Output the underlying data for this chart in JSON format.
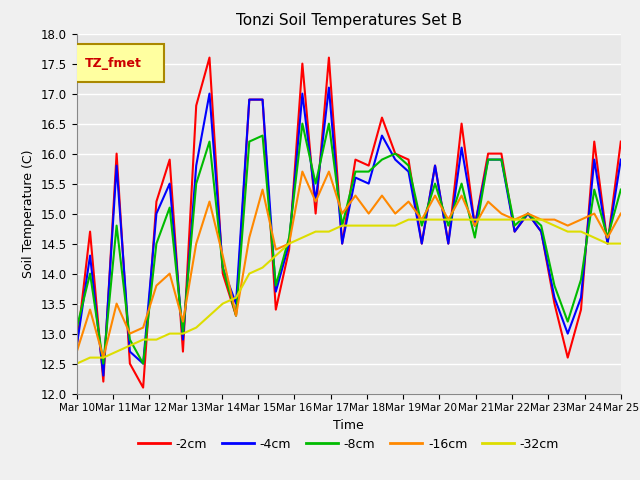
{
  "title": "Tonzi Soil Temperatures Set B",
  "xlabel": "Time",
  "ylabel": "Soil Temperature (C)",
  "ylim": [
    12.0,
    18.0
  ],
  "yticks": [
    12.0,
    12.5,
    13.0,
    13.5,
    14.0,
    14.5,
    15.0,
    15.5,
    16.0,
    16.5,
    17.0,
    17.5,
    18.0
  ],
  "x_labels": [
    "Mar 10",
    "Mar 11",
    "Mar 12",
    "Mar 13",
    "Mar 14",
    "Mar 15",
    "Mar 16",
    "Mar 17",
    "Mar 18",
    "Mar 19",
    "Mar 20",
    "Mar 21",
    "Mar 22",
    "Mar 23",
    "Mar 24",
    "Mar 25"
  ],
  "plot_bg": "#e8e8e8",
  "fig_bg": "#f0f0f0",
  "grid_color": "#ffffff",
  "series_colors": {
    "-2cm": "#ff0000",
    "-4cm": "#0000ff",
    "-8cm": "#00bb00",
    "-16cm": "#ff8800",
    "-32cm": "#dddd00"
  },
  "series_order": [
    "-2cm",
    "-4cm",
    "-8cm",
    "-16cm",
    "-32cm"
  ],
  "linewidth": 1.5,
  "series_values": {
    "-2cm": [
      12.8,
      14.7,
      12.2,
      16.0,
      12.5,
      12.1,
      15.2,
      15.9,
      12.7,
      16.8,
      17.6,
      14.0,
      13.3,
      16.9,
      16.9,
      13.4,
      14.4,
      17.5,
      15.0,
      17.6,
      14.5,
      15.9,
      15.8,
      16.6,
      16.0,
      15.9,
      14.5,
      15.8,
      14.5,
      16.5,
      14.8,
      16.0,
      16.0,
      14.7,
      15.0,
      14.7,
      13.5,
      12.6,
      13.4,
      16.2,
      14.5,
      16.2
    ],
    "-4cm": [
      12.8,
      14.3,
      12.3,
      15.8,
      12.7,
      12.5,
      15.0,
      15.5,
      12.9,
      15.8,
      17.0,
      14.1,
      13.5,
      16.9,
      16.9,
      13.7,
      14.5,
      17.0,
      15.2,
      17.1,
      14.5,
      15.6,
      15.5,
      16.3,
      15.9,
      15.7,
      14.5,
      15.8,
      14.5,
      16.1,
      14.8,
      15.9,
      15.9,
      14.7,
      15.0,
      14.7,
      13.6,
      13.0,
      13.6,
      15.9,
      14.5,
      15.9
    ],
    "-8cm": [
      13.1,
      14.0,
      12.5,
      14.8,
      12.9,
      12.5,
      14.5,
      15.1,
      13.0,
      15.5,
      16.2,
      14.1,
      13.3,
      16.2,
      16.3,
      13.8,
      14.6,
      16.5,
      15.5,
      16.5,
      14.8,
      15.7,
      15.7,
      15.9,
      16.0,
      15.8,
      14.8,
      15.5,
      14.8,
      15.5,
      14.6,
      15.9,
      15.9,
      14.8,
      15.0,
      14.8,
      13.8,
      13.2,
      13.9,
      15.4,
      14.6,
      15.4
    ],
    "-16cm": [
      12.7,
      13.4,
      12.6,
      13.5,
      13.0,
      13.1,
      13.8,
      14.0,
      13.2,
      14.5,
      15.2,
      14.3,
      13.3,
      14.6,
      15.4,
      14.4,
      14.5,
      15.7,
      15.2,
      15.7,
      15.0,
      15.3,
      15.0,
      15.3,
      15.0,
      15.2,
      14.9,
      15.3,
      14.9,
      15.3,
      14.8,
      15.2,
      15.0,
      14.9,
      15.0,
      14.9,
      14.9,
      14.8,
      14.9,
      15.0,
      14.6,
      15.0
    ],
    "-32cm": [
      12.5,
      12.6,
      12.6,
      12.7,
      12.8,
      12.9,
      12.9,
      13.0,
      13.0,
      13.1,
      13.3,
      13.5,
      13.6,
      14.0,
      14.1,
      14.3,
      14.5,
      14.6,
      14.7,
      14.7,
      14.8,
      14.8,
      14.8,
      14.8,
      14.8,
      14.9,
      14.9,
      14.9,
      14.9,
      14.9,
      14.9,
      14.9,
      14.9,
      14.9,
      14.9,
      14.9,
      14.8,
      14.7,
      14.7,
      14.6,
      14.5,
      14.5
    ]
  },
  "legend_label": "TZ_fmet",
  "legend_bg": "#ffffa0",
  "legend_border": "#aa8800"
}
